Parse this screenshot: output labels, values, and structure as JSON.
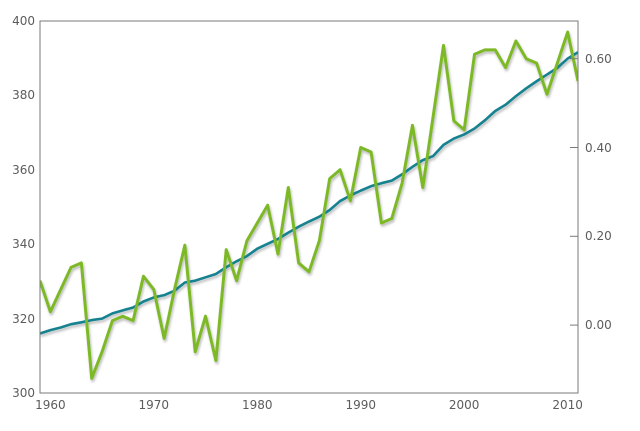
{
  "page": {
    "background": "#ffffff"
  },
  "colors": {
    "frame": "#7a7a7a",
    "tick_label": "#5c5c5c",
    "co2_line": "#13818F",
    "temperature_line": "#7DB928",
    "background": "#ffffff"
  },
  "chart_data": {
    "type": "line",
    "title": "",
    "xlabel": "",
    "ylabel_left": "",
    "ylabel_right": "",
    "grid": false,
    "legend": "none",
    "x": [
      1959,
      1960,
      1961,
      1962,
      1963,
      1964,
      1965,
      1966,
      1967,
      1968,
      1969,
      1970,
      1971,
      1972,
      1973,
      1974,
      1975,
      1976,
      1977,
      1978,
      1979,
      1980,
      1981,
      1982,
      1983,
      1984,
      1985,
      1986,
      1987,
      1988,
      1989,
      1990,
      1991,
      1992,
      1993,
      1994,
      1995,
      1996,
      1997,
      1998,
      1999,
      2000,
      2001,
      2002,
      2003,
      2004,
      2005,
      2006,
      2007,
      2008,
      2009,
      2010,
      2011
    ],
    "series": [
      {
        "name": "co2-concentration-ppm",
        "axis": "left",
        "color": "#13818F",
        "stroke_width": 2.6,
        "values": [
          316.0,
          316.9,
          317.6,
          318.5,
          319.0,
          319.6,
          320.0,
          321.4,
          322.2,
          323.0,
          324.6,
          325.7,
          326.3,
          327.5,
          329.7,
          330.2,
          331.1,
          332.0,
          333.8,
          335.4,
          336.8,
          338.8,
          340.1,
          341.4,
          343.1,
          344.7,
          346.1,
          347.4,
          349.2,
          351.6,
          353.1,
          354.4,
          355.6,
          356.4,
          357.1,
          358.8,
          360.8,
          362.6,
          363.7,
          366.7,
          368.4,
          369.5,
          371.1,
          373.3,
          375.8,
          377.5,
          379.8,
          381.9,
          383.8,
          385.6,
          387.4,
          389.9,
          391.6
        ]
      },
      {
        "name": "temperature-anomaly",
        "axis": "right",
        "color": "#7DB928",
        "stroke_width": 3,
        "values": [
          0.1,
          0.03,
          0.08,
          0.13,
          0.14,
          -0.12,
          -0.06,
          0.01,
          0.02,
          0.01,
          0.11,
          0.08,
          -0.03,
          0.08,
          0.18,
          -0.06,
          0.02,
          -0.08,
          0.17,
          0.1,
          0.19,
          0.23,
          0.27,
          0.16,
          0.31,
          0.14,
          0.12,
          0.19,
          0.33,
          0.35,
          0.28,
          0.4,
          0.39,
          0.23,
          0.24,
          0.32,
          0.45,
          0.31,
          0.47,
          0.63,
          0.46,
          0.44,
          0.61,
          0.62,
          0.62,
          0.58,
          0.64,
          0.6,
          0.59,
          0.52,
          0.59,
          0.66,
          0.55
        ]
      }
    ],
    "x_axis": {
      "range": [
        1959,
        2011
      ],
      "ticks": [
        1960,
        1970,
        1980,
        1990,
        2000,
        2010
      ],
      "labels": [
        "1960",
        "1970",
        "1980",
        "1990",
        "2000",
        "2010"
      ]
    },
    "y_axis_left": {
      "range": [
        300,
        400
      ],
      "ticks": [
        400,
        380,
        360,
        340,
        320,
        300
      ],
      "labels": [
        "400",
        "380",
        "360",
        "340",
        "320",
        "300"
      ]
    },
    "y_axis_right": {
      "range": [
        -0.153,
        0.685
      ],
      "ticks": [
        0.6,
        0.4,
        0.2,
        0.0
      ],
      "labels": [
        "0.60",
        "0.40",
        "0.20",
        "0.00"
      ]
    }
  }
}
